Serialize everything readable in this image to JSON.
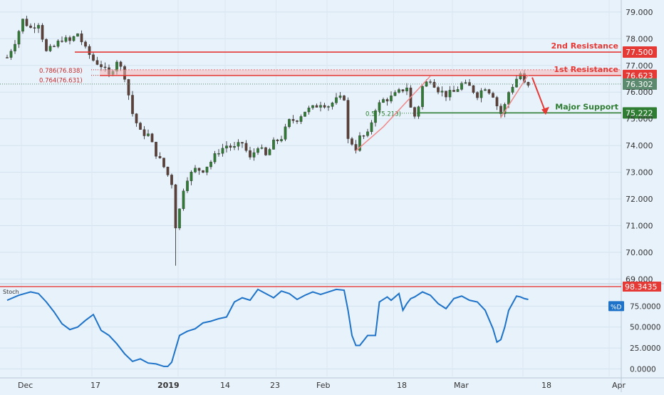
{
  "chart_data": [
    {
      "type": "candlestick",
      "instrument_note": "",
      "y_axis_ticks": [
        "79.000",
        "78.000",
        "77.000",
        "76.000",
        "75.000",
        "74.000",
        "73.000",
        "72.000",
        "71.000",
        "70.000",
        "69.000"
      ],
      "ylim": [
        68.85,
        79.45
      ],
      "x_axis_ticks": [
        "Dec",
        "17",
        "2019",
        "14",
        "23",
        "Feb",
        "18",
        "Mar",
        "18",
        "Apr"
      ],
      "close_path": [
        [
          0,
          77.3
        ],
        [
          2,
          77.9
        ],
        [
          4,
          78.7
        ],
        [
          6,
          78.4
        ],
        [
          8,
          78.6
        ],
        [
          10,
          77.5
        ],
        [
          12,
          77.7
        ],
        [
          14,
          78.0
        ],
        [
          16,
          77.9
        ],
        [
          18,
          78.2
        ],
        [
          20,
          77.6
        ],
        [
          22,
          77.2
        ],
        [
          24,
          77.0
        ],
        [
          26,
          76.6
        ],
        [
          28,
          77.2
        ],
        [
          30,
          76.6
        ],
        [
          32,
          75.2
        ],
        [
          34,
          74.5
        ],
        [
          36,
          74.4
        ],
        [
          38,
          73.7
        ],
        [
          40,
          73.2
        ],
        [
          42,
          72.6
        ],
        [
          43,
          71.0
        ],
        [
          44,
          71.6
        ],
        [
          45,
          72.4
        ],
        [
          46,
          72.8
        ],
        [
          48,
          73.1
        ],
        [
          50,
          73.1
        ],
        [
          52,
          73.4
        ],
        [
          54,
          73.8
        ],
        [
          56,
          74.0
        ],
        [
          58,
          73.9
        ],
        [
          60,
          74.1
        ],
        [
          62,
          73.5
        ],
        [
          64,
          74.0
        ],
        [
          66,
          73.6
        ],
        [
          68,
          74.1
        ],
        [
          70,
          74.3
        ],
        [
          72,
          74.9
        ],
        [
          74,
          75.0
        ],
        [
          76,
          75.3
        ],
        [
          78,
          75.4
        ],
        [
          80,
          75.6
        ],
        [
          82,
          75.5
        ],
        [
          84,
          75.7
        ],
        [
          86,
          75.8
        ],
        [
          87,
          74.2
        ],
        [
          88,
          74.1
        ],
        [
          89,
          73.9
        ],
        [
          90,
          74.3
        ],
        [
          92,
          74.4
        ],
        [
          94,
          75.4
        ],
        [
          96,
          75.7
        ],
        [
          98,
          75.8
        ],
        [
          100,
          76.0
        ],
        [
          102,
          76.2
        ],
        [
          103,
          75.4
        ],
        [
          104,
          75.1
        ],
        [
          105,
          75.5
        ],
        [
          106,
          76.2
        ],
        [
          108,
          76.5
        ],
        [
          110,
          76.1
        ],
        [
          112,
          75.9
        ],
        [
          114,
          76.0
        ],
        [
          116,
          76.3
        ],
        [
          118,
          76.2
        ],
        [
          120,
          75.9
        ],
        [
          122,
          76.2
        ],
        [
          124,
          75.9
        ],
        [
          125,
          75.5
        ],
        [
          126,
          75.2
        ],
        [
          127,
          75.5
        ],
        [
          128,
          76.0
        ],
        [
          130,
          76.5
        ],
        [
          131,
          76.7
        ],
        [
          132,
          76.3
        ],
        [
          133,
          76.2
        ]
      ],
      "levels": [
        {
          "label": "2nd Resistance",
          "value": 77.5,
          "price_tag": "77.500",
          "color": "#e53935"
        },
        {
          "label": "1st Resistance",
          "value": 76.623,
          "price_tag": "76.623",
          "color": "#e53935"
        },
        {
          "label": "Major Support",
          "value": 75.222,
          "price_tag": "75.222",
          "color": "#2e7d32"
        }
      ],
      "current_price_tag": "76.302",
      "current_price": 76.302,
      "fib_labels": [
        {
          "text": "0.786(76.838)",
          "value": 76.838
        },
        {
          "text": "0.764(76.631)",
          "value": 76.631
        },
        {
          "text": "0.5(75.213)",
          "value": 75.213
        }
      ]
    },
    {
      "type": "line",
      "title": "Stoch",
      "series_tag": "%D",
      "y_axis_ticks": [
        "75.0000",
        "50.0000",
        "25.0000",
        "0.0000"
      ],
      "ylim": [
        -9,
        100
      ],
      "marked_level": 98.3435,
      "marked_level_tag": "98.3435",
      "values_path": [
        [
          0,
          82
        ],
        [
          3,
          88
        ],
        [
          6,
          92
        ],
        [
          8,
          90
        ],
        [
          10,
          80
        ],
        [
          12,
          68
        ],
        [
          14,
          54
        ],
        [
          16,
          47
        ],
        [
          18,
          50
        ],
        [
          20,
          58
        ],
        [
          22,
          65
        ],
        [
          24,
          46
        ],
        [
          26,
          40
        ],
        [
          28,
          30
        ],
        [
          30,
          18
        ],
        [
          32,
          9
        ],
        [
          34,
          12
        ],
        [
          36,
          7
        ],
        [
          38,
          6
        ],
        [
          40,
          3
        ],
        [
          41,
          3
        ],
        [
          42,
          8
        ],
        [
          44,
          40
        ],
        [
          46,
          45
        ],
        [
          48,
          48
        ],
        [
          50,
          55
        ],
        [
          52,
          57
        ],
        [
          54,
          60
        ],
        [
          56,
          62
        ],
        [
          58,
          80
        ],
        [
          60,
          85
        ],
        [
          62,
          82
        ],
        [
          64,
          95
        ],
        [
          66,
          90
        ],
        [
          68,
          85
        ],
        [
          70,
          93
        ],
        [
          72,
          90
        ],
        [
          74,
          83
        ],
        [
          76,
          88
        ],
        [
          78,
          92
        ],
        [
          80,
          89
        ],
        [
          82,
          92
        ],
        [
          84,
          95
        ],
        [
          86,
          94
        ],
        [
          87,
          70
        ],
        [
          88,
          40
        ],
        [
          89,
          28
        ],
        [
          90,
          28
        ],
        [
          92,
          40
        ],
        [
          94,
          40
        ],
        [
          95,
          80
        ],
        [
          96,
          83
        ],
        [
          97,
          86
        ],
        [
          98,
          82
        ],
        [
          100,
          90
        ],
        [
          101,
          70
        ],
        [
          102,
          78
        ],
        [
          103,
          84
        ],
        [
          104,
          86
        ],
        [
          106,
          92
        ],
        [
          108,
          88
        ],
        [
          110,
          78
        ],
        [
          112,
          72
        ],
        [
          114,
          84
        ],
        [
          116,
          87
        ],
        [
          118,
          82
        ],
        [
          120,
          80
        ],
        [
          122,
          70
        ],
        [
          124,
          48
        ],
        [
          125,
          32
        ],
        [
          126,
          35
        ],
        [
          127,
          50
        ],
        [
          128,
          70
        ],
        [
          130,
          87
        ],
        [
          131,
          86
        ],
        [
          132,
          84
        ],
        [
          133,
          83
        ]
      ]
    }
  ]
}
